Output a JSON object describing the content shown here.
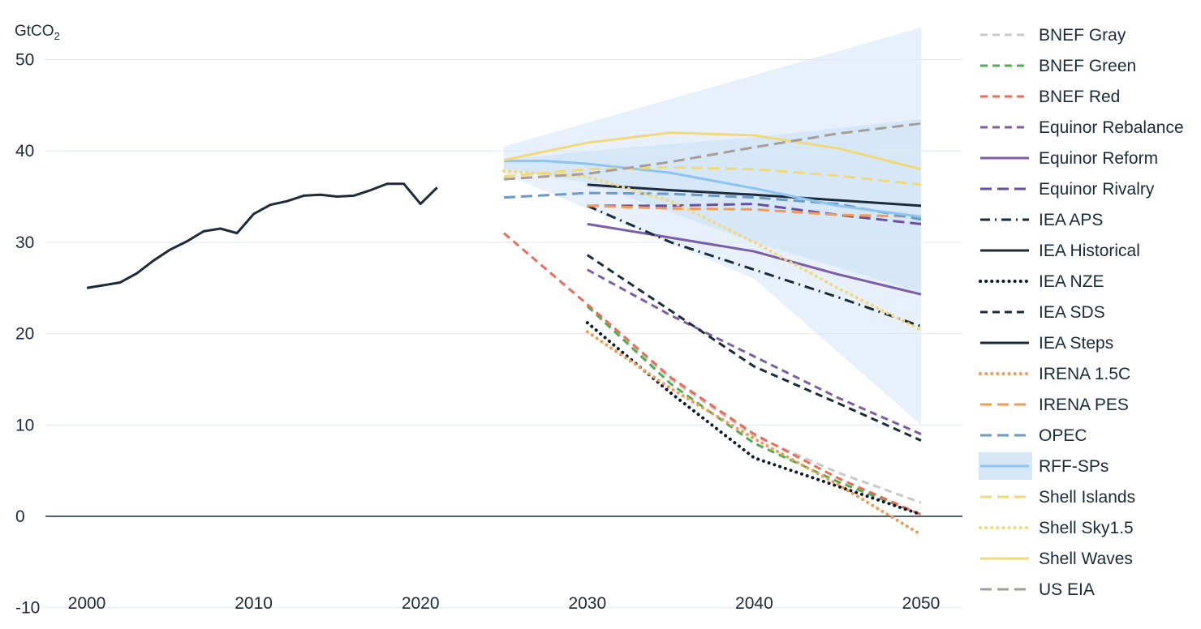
{
  "chart_data": {
    "type": "line",
    "unit_label": "GtCO",
    "unit_subscript": "2",
    "xlim": [
      1998,
      2053
    ],
    "ylim": [
      -10,
      50
    ],
    "x_ticks": [
      2000,
      2010,
      2020,
      2030,
      2040,
      2050
    ],
    "y_ticks": [
      50,
      40,
      30,
      20,
      10,
      0,
      -10
    ],
    "grid": true,
    "legend_position": "right",
    "bands": [
      {
        "name": "RFF-SPs",
        "role": "outer",
        "color": "#e8f1fb",
        "upper": [
          [
            2025,
            40.5
          ],
          [
            2050,
            53.5
          ]
        ],
        "lower": [
          [
            2025,
            37.5
          ],
          [
            2040,
            26
          ],
          [
            2050,
            10
          ]
        ]
      },
      {
        "name": "RFF-SPs",
        "role": "inner",
        "color": "#d6e8f8",
        "upper": [
          [
            2025,
            39
          ],
          [
            2030,
            40
          ],
          [
            2040,
            41.5
          ],
          [
            2050,
            43.5
          ]
        ],
        "lower": [
          [
            2025,
            38
          ],
          [
            2030,
            36.5
          ],
          [
            2040,
            30
          ],
          [
            2050,
            24.5
          ]
        ]
      }
    ],
    "series": [
      {
        "name": "BNEF Gray",
        "color": "#c9c9c9",
        "dash": "dashed",
        "points": [
          [
            2030,
            23
          ],
          [
            2035,
            15
          ],
          [
            2040,
            8.8
          ],
          [
            2045,
            4.8
          ],
          [
            2050,
            1.5
          ]
        ]
      },
      {
        "name": "BNEF Green",
        "color": "#4caf50",
        "dash": "dashed",
        "points": [
          [
            2030,
            23
          ],
          [
            2035,
            14.5
          ],
          [
            2040,
            8
          ],
          [
            2045,
            3.8
          ],
          [
            2050,
            0.2
          ]
        ]
      },
      {
        "name": "BNEF Red",
        "color": "#ec6b56",
        "dash": "dashed",
        "points": [
          [
            2025,
            31
          ],
          [
            2030,
            23.2
          ],
          [
            2035,
            15.2
          ],
          [
            2040,
            9
          ],
          [
            2045,
            4.2
          ],
          [
            2050,
            0.2
          ]
        ]
      },
      {
        "name": "Equinor Rebalance",
        "color": "#7b5ea7",
        "dash": "dashed",
        "points": [
          [
            2030,
            27
          ],
          [
            2035,
            22
          ],
          [
            2040,
            17.5
          ],
          [
            2045,
            13
          ],
          [
            2050,
            9
          ]
        ]
      },
      {
        "name": "Equinor Reform",
        "color": "#7b5ea7",
        "dash": "solid",
        "points": [
          [
            2030,
            32
          ],
          [
            2035,
            30.5
          ],
          [
            2040,
            29
          ],
          [
            2045,
            26.5
          ],
          [
            2050,
            24.3
          ]
        ]
      },
      {
        "name": "Equinor Rivalry",
        "color": "#6a4fa0",
        "dash": "longdash",
        "points": [
          [
            2030,
            34
          ],
          [
            2035,
            34
          ],
          [
            2040,
            34.2
          ],
          [
            2045,
            33
          ],
          [
            2050,
            32
          ]
        ]
      },
      {
        "name": "IEA APS",
        "color": "#1b2b3a",
        "dash": "dashdot",
        "points": [
          [
            2030,
            34
          ],
          [
            2035,
            30
          ],
          [
            2040,
            27
          ],
          [
            2045,
            24
          ],
          [
            2050,
            20.8
          ]
        ]
      },
      {
        "name": "IEA Historical",
        "color": "#1b2b3a",
        "dash": "solid",
        "points": [
          [
            2000,
            25
          ],
          [
            2002,
            25.6
          ],
          [
            2003,
            26.6
          ],
          [
            2004,
            28
          ],
          [
            2005,
            29.2
          ],
          [
            2006,
            30.1
          ],
          [
            2007,
            31.2
          ],
          [
            2008,
            31.5
          ],
          [
            2009,
            31
          ],
          [
            2010,
            33.1
          ],
          [
            2011,
            34.1
          ],
          [
            2012,
            34.5
          ],
          [
            2013,
            35.1
          ],
          [
            2014,
            35.2
          ],
          [
            2015,
            35
          ],
          [
            2016,
            35.1
          ],
          [
            2017,
            35.7
          ],
          [
            2018,
            36.4
          ],
          [
            2019,
            36.4
          ],
          [
            2020,
            34.2
          ],
          [
            2021,
            36
          ]
        ]
      },
      {
        "name": "IEA NZE",
        "color": "#0d1b2a",
        "dash": "dotted",
        "points": [
          [
            2030,
            21.2
          ],
          [
            2035,
            13.5
          ],
          [
            2040,
            6.4
          ],
          [
            2045,
            3.3
          ],
          [
            2050,
            0.2
          ]
        ]
      },
      {
        "name": "IEA SDS",
        "color": "#1b2b3a",
        "dash": "dashed",
        "points": [
          [
            2030,
            28.6
          ],
          [
            2035,
            22.5
          ],
          [
            2040,
            16.4
          ],
          [
            2045,
            12.4
          ],
          [
            2050,
            8.3
          ]
        ]
      },
      {
        "name": "IEA Steps",
        "color": "#1b2b3a",
        "dash": "solid",
        "points": [
          [
            2030,
            36.3
          ],
          [
            2035,
            35.7
          ],
          [
            2040,
            35.2
          ],
          [
            2045,
            34.6
          ],
          [
            2050,
            34
          ]
        ]
      },
      {
        "name": "IRENA 1.5C",
        "color": "#f19b56",
        "dash": "dotted",
        "points": [
          [
            2030,
            20.2
          ],
          [
            2035,
            14
          ],
          [
            2040,
            8.5
          ],
          [
            2045,
            3.5
          ],
          [
            2050,
            -2
          ]
        ]
      },
      {
        "name": "IRENA PES",
        "color": "#f19b56",
        "dash": "longdash",
        "points": [
          [
            2030,
            34
          ],
          [
            2035,
            33.7
          ],
          [
            2040,
            33.6
          ],
          [
            2045,
            33
          ],
          [
            2050,
            32.8
          ]
        ]
      },
      {
        "name": "OPEC",
        "color": "#6a9ac7",
        "dash": "longdash",
        "points": [
          [
            2025,
            34.9
          ],
          [
            2030,
            35.4
          ],
          [
            2035,
            35.3
          ],
          [
            2040,
            34.9
          ],
          [
            2045,
            34.2
          ],
          [
            2050,
            32.5
          ]
        ]
      },
      {
        "name": "RFF-SPs",
        "color": "#8ec4f0",
        "dash": "solid",
        "points": [
          [
            2025,
            38.9
          ],
          [
            2027.5,
            38.9
          ],
          [
            2030,
            38.6
          ],
          [
            2035,
            37.6
          ],
          [
            2040,
            35.9
          ],
          [
            2045,
            34
          ],
          [
            2050,
            32.8
          ]
        ]
      },
      {
        "name": "Shell Islands",
        "color": "#f1d97a",
        "dash": "longdash",
        "points": [
          [
            2025,
            37.2
          ],
          [
            2030,
            38
          ],
          [
            2035,
            38.2
          ],
          [
            2040,
            38
          ],
          [
            2045,
            37.3
          ],
          [
            2050,
            36.3
          ]
        ]
      },
      {
        "name": "Shell Sky1.5",
        "color": "#f1d97a",
        "dash": "dotted",
        "points": [
          [
            2025,
            37.8
          ],
          [
            2030,
            37.2
          ],
          [
            2035,
            34.5
          ],
          [
            2040,
            30
          ],
          [
            2045,
            25
          ],
          [
            2050,
            20.4
          ]
        ]
      },
      {
        "name": "Shell Waves",
        "color": "#f1d97a",
        "dash": "solid",
        "points": [
          [
            2025,
            39
          ],
          [
            2030,
            40.9
          ],
          [
            2035,
            42
          ],
          [
            2040,
            41.7
          ],
          [
            2045,
            40.3
          ],
          [
            2050,
            38
          ]
        ]
      },
      {
        "name": "US EIA",
        "color": "#a79d98",
        "dash": "longdash",
        "points": [
          [
            2025,
            36.9
          ],
          [
            2030,
            37.5
          ],
          [
            2035,
            38.8
          ],
          [
            2040,
            40.4
          ],
          [
            2045,
            41.9
          ],
          [
            2050,
            43
          ]
        ]
      }
    ]
  }
}
